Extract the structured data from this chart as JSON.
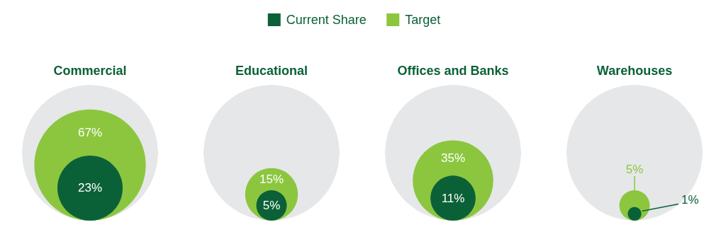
{
  "chart_data": {
    "type": "other",
    "categories": [
      "Commercial",
      "Educational",
      "Offices and Banks",
      "Warehouses"
    ],
    "series": [
      {
        "name": "Current Share",
        "color": "#0b6137",
        "values": [
          23,
          5,
          11,
          1
        ],
        "value_labels": [
          "23%",
          "5%",
          "11%",
          "1%"
        ]
      },
      {
        "name": "Target",
        "color": "#8cc63f",
        "values": [
          67,
          15,
          35,
          5
        ],
        "value_labels": [
          "67%",
          "15%",
          "35%",
          "5%"
        ]
      }
    ],
    "legend": "top"
  }
}
